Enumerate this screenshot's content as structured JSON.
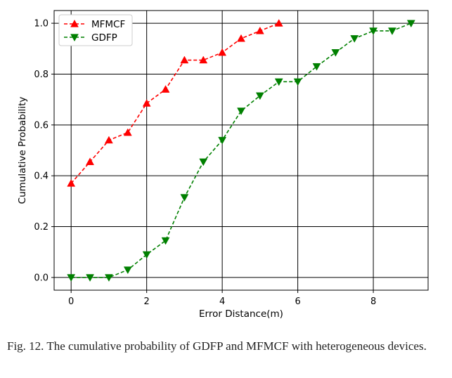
{
  "chart_data": {
    "type": "line",
    "xlabel": "Error Distance(m)",
    "ylabel": "Cumulative Probability",
    "xlim": [
      -0.45,
      9.45
    ],
    "ylim": [
      -0.05,
      1.05
    ],
    "xticks": [
      0,
      2,
      4,
      6,
      8
    ],
    "xtick_labels": [
      "0",
      "2",
      "4",
      "6",
      "8"
    ],
    "yticks": [
      0.0,
      0.2,
      0.4,
      0.6,
      0.8,
      1.0
    ],
    "ytick_labels": [
      "0.0",
      "0.2",
      "0.4",
      "0.6",
      "0.8",
      "1.0"
    ],
    "grid": true,
    "legend_position": "top-left",
    "series": [
      {
        "name": "MFMCF",
        "color": "#ff0000",
        "marker": "triangle-up",
        "line_style": "dashed",
        "x": [
          0,
          0.5,
          1,
          1.5,
          2,
          2.5,
          3,
          3.5,
          4,
          4.5,
          5,
          5.5
        ],
        "y": [
          0.37,
          0.455,
          0.54,
          0.57,
          0.685,
          0.74,
          0.855,
          0.855,
          0.885,
          0.94,
          0.97,
          1.0
        ]
      },
      {
        "name": "GDFP",
        "color": "#008000",
        "marker": "triangle-down",
        "line_style": "dashed",
        "x": [
          0,
          0.5,
          1,
          1.5,
          2,
          2.5,
          3,
          3.5,
          4,
          4.5,
          5,
          5.5,
          6,
          6.5,
          7,
          7.5,
          8,
          8.5,
          9
        ],
        "y": [
          0.0,
          0.0,
          0.0,
          0.03,
          0.09,
          0.145,
          0.315,
          0.455,
          0.54,
          0.655,
          0.715,
          0.77,
          0.77,
          0.83,
          0.885,
          0.94,
          0.97,
          0.97,
          1.0
        ]
      }
    ]
  },
  "caption": "Fig. 12.    The cumulative probability of GDFP and MFMCF with heterogeneous devices."
}
